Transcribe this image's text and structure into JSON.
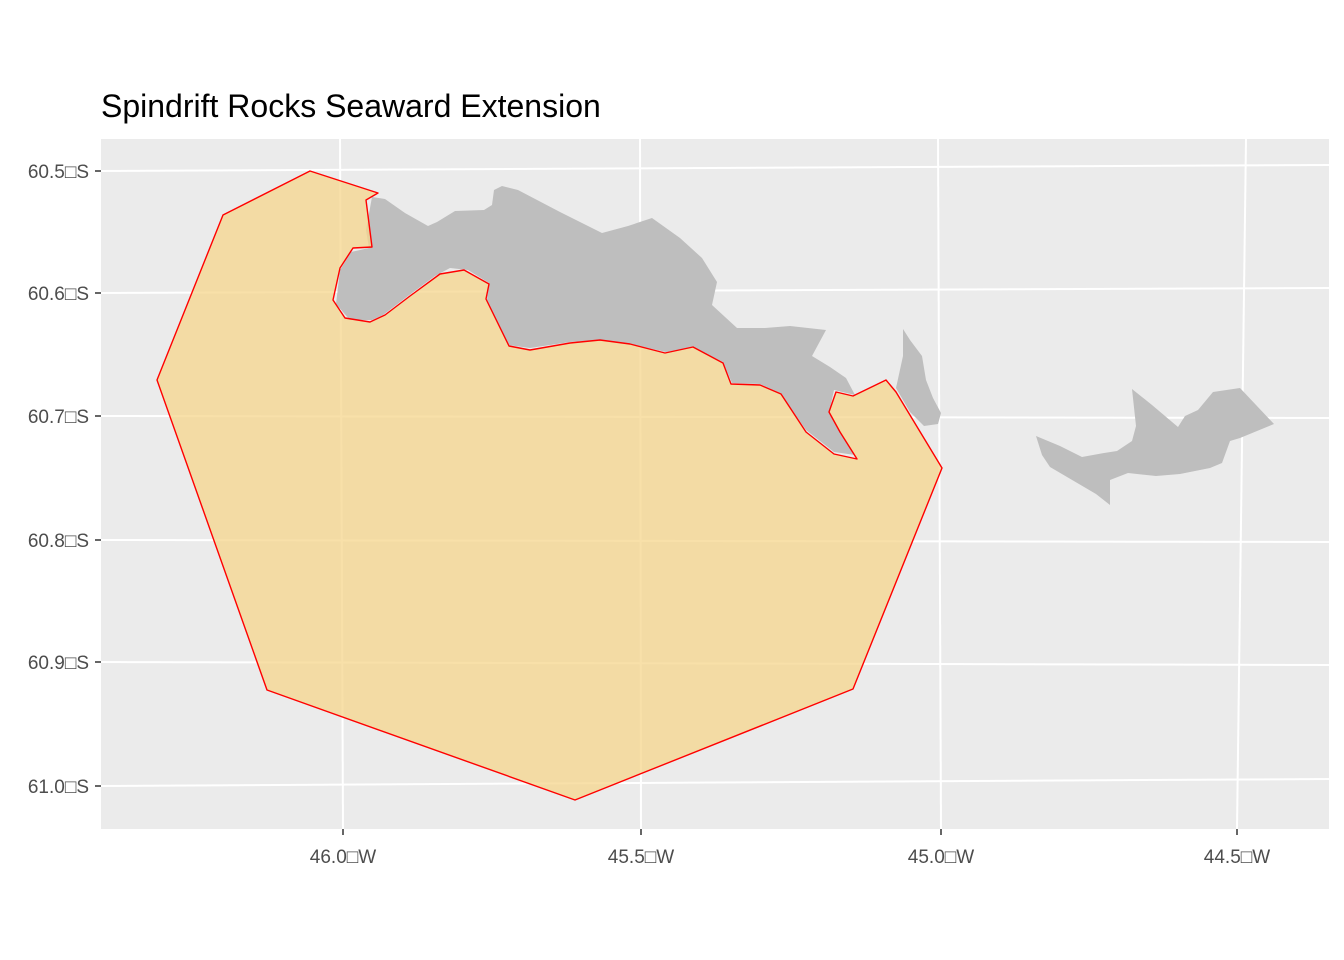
{
  "title": "Spindrift Rocks Seaward Extension",
  "colors": {
    "panel_background": "#ebebeb",
    "grid_line": "#ffffff",
    "land_fill": "#bebebe",
    "area_fill": "#f5d58c",
    "area_outline": "#ff0000"
  },
  "axes": {
    "x_ticks": [
      "46.0□W",
      "45.5□W",
      "45.0□W",
      "44.5□W"
    ],
    "y_ticks": [
      "60.5□S",
      "60.6□S",
      "60.7□S",
      "60.8□S",
      "60.9□S",
      "61.0□S"
    ]
  }
}
